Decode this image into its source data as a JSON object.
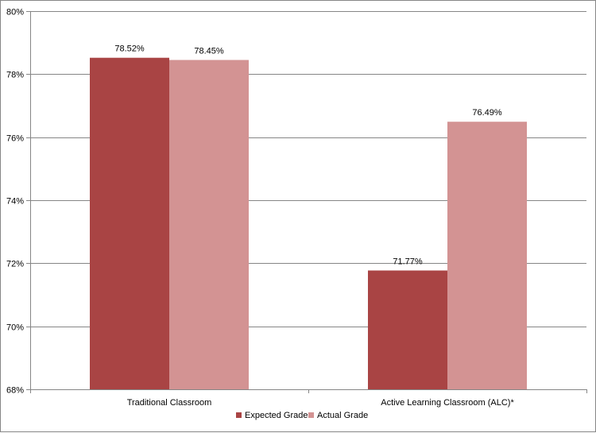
{
  "chart_data": {
    "type": "bar",
    "categories": [
      "Traditional Classroom",
      "Active Learning Classroom (ALC)*"
    ],
    "series": [
      {
        "name": "Expected Grade",
        "values": [
          78.52,
          71.77
        ],
        "labels": [
          "78.52%",
          "71.77%"
        ],
        "color": "#a94444"
      },
      {
        "name": "Actual Grade",
        "values": [
          78.45,
          76.49
        ],
        "labels": [
          "78.45%",
          "76.49%"
        ],
        "color": "#d39393"
      }
    ],
    "ylim": [
      68,
      80
    ],
    "yticks": [
      "68%",
      "70%",
      "72%",
      "74%",
      "76%",
      "78%",
      "80%"
    ],
    "ytick_values": [
      68,
      70,
      72,
      74,
      76,
      78,
      80
    ],
    "grid": true,
    "legend_position": "bottom"
  }
}
